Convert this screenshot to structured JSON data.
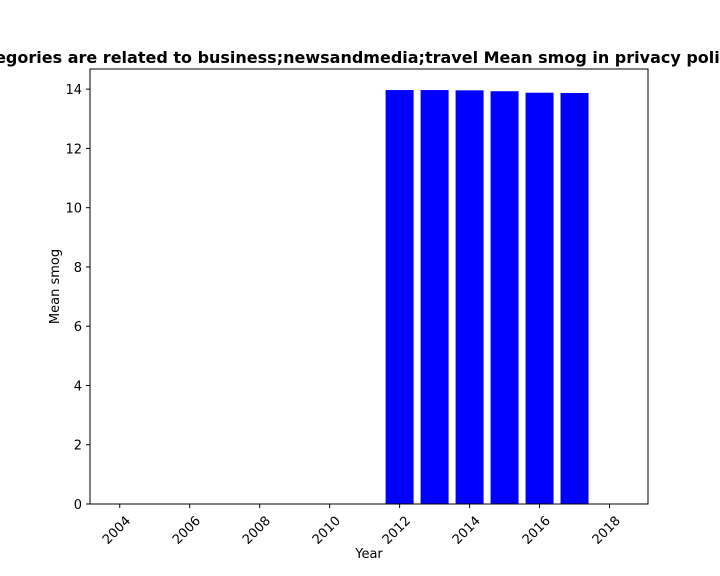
{
  "chart_data": {
    "type": "bar",
    "title": "Categories are related to business;newsandmedia;travel Mean smog in privacy policies",
    "xlabel": "Year",
    "ylabel": "Mean smog",
    "x": [
      2012,
      2013,
      2014,
      2015,
      2016,
      2017
    ],
    "values": [
      13.97,
      13.97,
      13.96,
      13.93,
      13.88,
      13.87
    ],
    "xlim": [
      2003.15,
      2019.1
    ],
    "ylim": [
      0,
      14.68
    ],
    "xticks": [
      2004,
      2006,
      2008,
      2010,
      2012,
      2014,
      2016,
      2018
    ],
    "yticks": [
      0,
      2,
      4,
      6,
      8,
      10,
      12,
      14
    ],
    "bar_color": "#0000ff",
    "grid": false,
    "legend": "none"
  }
}
